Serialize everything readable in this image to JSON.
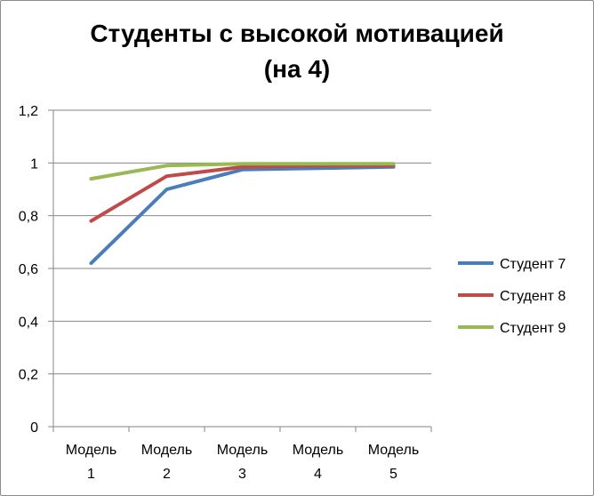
{
  "chart_data": {
    "type": "line",
    "title_line1": "Студенты с высокой мотивацией",
    "title_line2": "(на 4)",
    "xlabel": "",
    "ylabel": "",
    "categories_top": [
      "Модель",
      "Модель",
      "Модель",
      "Модель",
      "Модель"
    ],
    "categories_bottom": [
      "1",
      "2",
      "3",
      "4",
      "5"
    ],
    "ylim": [
      0,
      1.2
    ],
    "yticks": [
      "0",
      "0,2",
      "0,4",
      "0,6",
      "0,8",
      "1",
      "1,2"
    ],
    "ytick_values": [
      0,
      0.2,
      0.4,
      0.6,
      0.8,
      1.0,
      1.2
    ],
    "grid": true,
    "legend_position": "right",
    "series": [
      {
        "name": "Студент 7",
        "color": "#4a7ebb",
        "values": [
          0.62,
          0.9,
          0.975,
          0.98,
          0.985
        ]
      },
      {
        "name": "Студент 8",
        "color": "#be4b48",
        "values": [
          0.78,
          0.95,
          0.985,
          0.99,
          0.99
        ]
      },
      {
        "name": "Студент 9",
        "color": "#98b954",
        "values": [
          0.94,
          0.99,
          0.997,
          0.997,
          0.997
        ]
      }
    ]
  }
}
